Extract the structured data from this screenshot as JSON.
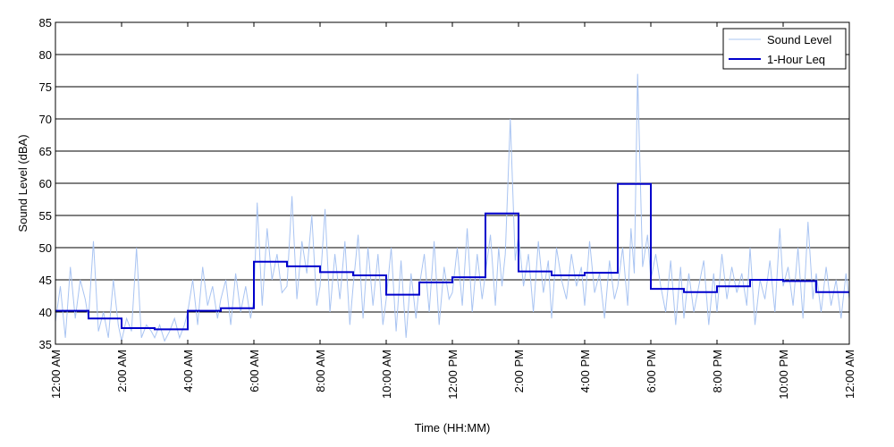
{
  "chart_data": {
    "type": "line",
    "xlabel": "Time (HH:MM)",
    "ylabel": "Sound Level (dBA)",
    "ylim": [
      35,
      85
    ],
    "yticks": [
      35,
      40,
      45,
      50,
      55,
      60,
      65,
      70,
      75,
      80,
      85
    ],
    "xlim": [
      0,
      24
    ],
    "x_unit": "hours",
    "xticks": [
      {
        "hour": 0,
        "label": "12:00 AM"
      },
      {
        "hour": 2,
        "label": "2:00 AM"
      },
      {
        "hour": 4,
        "label": "4:00 AM"
      },
      {
        "hour": 6,
        "label": "6:00 AM"
      },
      {
        "hour": 8,
        "label": "8:00 AM"
      },
      {
        "hour": 10,
        "label": "10:00 AM"
      },
      {
        "hour": 12,
        "label": "12:00 PM"
      },
      {
        "hour": 14,
        "label": "2:00 PM"
      },
      {
        "hour": 16,
        "label": "4:00 PM"
      },
      {
        "hour": 18,
        "label": "6:00 PM"
      },
      {
        "hour": 20,
        "label": "8:00 PM"
      },
      {
        "hour": 22,
        "label": "10:00 PM"
      },
      {
        "hour": 24,
        "label": "12:00 AM"
      }
    ],
    "grid": "horizontal",
    "legend_position": "top-right",
    "series": [
      {
        "name": "Sound Level",
        "color": "#a9c4f2",
        "style": "thin-line",
        "x": [
          0,
          0.15,
          0.3,
          0.45,
          0.6,
          0.75,
          0.9,
          1.0,
          1.15,
          1.3,
          1.45,
          1.6,
          1.75,
          1.9,
          2.0,
          2.15,
          2.3,
          2.45,
          2.6,
          2.75,
          2.9,
          3.0,
          3.15,
          3.3,
          3.45,
          3.6,
          3.75,
          3.9,
          4.0,
          4.15,
          4.3,
          4.45,
          4.6,
          4.75,
          4.9,
          5.0,
          5.15,
          5.3,
          5.45,
          5.6,
          5.75,
          5.9,
          6.0,
          6.1,
          6.25,
          6.4,
          6.55,
          6.7,
          6.85,
          7.0,
          7.15,
          7.3,
          7.45,
          7.6,
          7.75,
          7.9,
          8.0,
          8.15,
          8.3,
          8.45,
          8.6,
          8.75,
          8.9,
          9.0,
          9.15,
          9.3,
          9.45,
          9.6,
          9.75,
          9.9,
          10.0,
          10.15,
          10.3,
          10.45,
          10.6,
          10.75,
          10.9,
          11.0,
          11.15,
          11.3,
          11.45,
          11.6,
          11.75,
          11.9,
          12.0,
          12.15,
          12.3,
          12.45,
          12.6,
          12.75,
          12.9,
          13.0,
          13.15,
          13.3,
          13.4,
          13.5,
          13.6,
          13.75,
          13.9,
          14.0,
          14.15,
          14.3,
          14.45,
          14.6,
          14.75,
          14.9,
          15.0,
          15.15,
          15.3,
          15.45,
          15.6,
          15.75,
          15.9,
          16.0,
          16.15,
          16.3,
          16.45,
          16.6,
          16.75,
          16.9,
          17.0,
          17.15,
          17.3,
          17.4,
          17.5,
          17.6,
          17.75,
          17.9,
          18.0,
          18.15,
          18.3,
          18.45,
          18.6,
          18.75,
          18.9,
          19.0,
          19.15,
          19.3,
          19.45,
          19.6,
          19.75,
          19.9,
          20.0,
          20.15,
          20.3,
          20.45,
          20.6,
          20.75,
          20.9,
          21.0,
          21.15,
          21.3,
          21.45,
          21.6,
          21.75,
          21.9,
          22.0,
          22.15,
          22.3,
          22.45,
          22.6,
          22.75,
          22.9,
          23.0,
          23.15,
          23.3,
          23.45,
          23.6,
          23.75,
          23.9,
          24.0
        ],
        "y": [
          38.5,
          44,
          36,
          47,
          39,
          45,
          42,
          39,
          51,
          37,
          40,
          36,
          45,
          38,
          35.5,
          39,
          37,
          50,
          36,
          38,
          37,
          36,
          38,
          35.5,
          37,
          39,
          36,
          38,
          40,
          45,
          38,
          47,
          41,
          44,
          39,
          42,
          45,
          38,
          46,
          40,
          44,
          39,
          42,
          57,
          41,
          53,
          45,
          49,
          43,
          44,
          58,
          42,
          51,
          46,
          55,
          41,
          44,
          56,
          40,
          49,
          42,
          51,
          38,
          44,
          52,
          39,
          50,
          41,
          49,
          38,
          42,
          50,
          37,
          48,
          36,
          46,
          39,
          44,
          49,
          40,
          51,
          38,
          47,
          42,
          43,
          50,
          41,
          53,
          40,
          49,
          42,
          46,
          52,
          41,
          50,
          44,
          49,
          70,
          48,
          52,
          44,
          49,
          40,
          51,
          43,
          48,
          39,
          50,
          45,
          42,
          49,
          44,
          47,
          41,
          51,
          43,
          46,
          39,
          48,
          42,
          44,
          50,
          41,
          53,
          46,
          77,
          47,
          52,
          45,
          49,
          44,
          40,
          48,
          38,
          47,
          39,
          46,
          40,
          44,
          48,
          38,
          46,
          40,
          49,
          42,
          47,
          43,
          46,
          41,
          50,
          38,
          45,
          42,
          48,
          40,
          53,
          44,
          47,
          41,
          50,
          39,
          54,
          42,
          46,
          40,
          47,
          41,
          45,
          39,
          46,
          42
        ]
      },
      {
        "name": "1-Hour Leq",
        "color": "#0000cc",
        "style": "step",
        "x": [
          0,
          1,
          2,
          3,
          4,
          5,
          6,
          7,
          8,
          9,
          10,
          11,
          12,
          13,
          14,
          15,
          16,
          17,
          18,
          19,
          20,
          21,
          22,
          23
        ],
        "y": [
          40.2,
          39.0,
          37.5,
          37.3,
          40.2,
          40.6,
          47.8,
          47.1,
          46.2,
          45.7,
          42.7,
          44.6,
          45.4,
          55.3,
          46.3,
          45.7,
          46.1,
          59.9,
          43.6,
          43.1,
          44.0,
          45.0,
          44.8,
          43.1
        ]
      }
    ]
  }
}
